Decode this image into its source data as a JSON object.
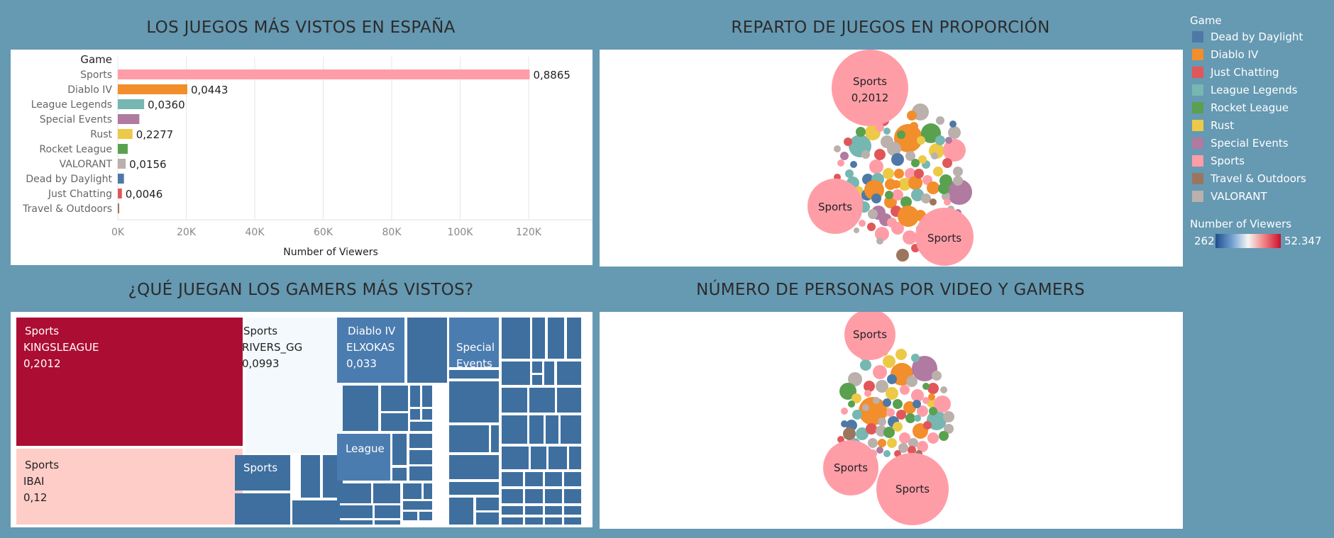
{
  "titles": {
    "top_left": "LOS JUEGOS MÁS VISTOS EN ESPAÑA",
    "top_right": "REPARTO DE JUEGOS EN PROPORCIÓN",
    "bottom_left": "¿QUÉ JUEGAN LOS GAMERS MÁS VISTOS?",
    "bottom_right": "NÚMERO DE PERSONAS POR VIDEO Y GAMERS"
  },
  "colors": {
    "Dead by Daylight": "#4e79a7",
    "Diablo IV": "#f28e2b",
    "Just Chatting": "#e15759",
    "League  Legends": "#76b7b2",
    "Rocket League": "#59a14f",
    "Rust": "#edc948",
    "Special Events": "#b07aa1",
    "Sports": "#ff9da7",
    "Travel & Outdoors": "#9c755f",
    "VALORANT": "#bab0ac"
  },
  "legend": {
    "title": "Game",
    "items": [
      "Dead by Daylight",
      "Diablo IV",
      "Just Chatting",
      "League  Legends",
      "Rocket League",
      "Rust",
      "Special Events",
      "Sports",
      "Travel & Outdoors",
      "VALORANT"
    ],
    "gradient_title": "Number of Viewers",
    "gradient_min": "262",
    "gradient_max": "52.347"
  },
  "chart_data": [
    {
      "type": "bar",
      "title": "LOS JUEGOS MÁS VISTOS EN ESPAÑA",
      "ylabel": "Game",
      "xlabel": "Number of Viewers",
      "categories": [
        "Sports",
        "Diablo IV",
        "League  Legends",
        "Special Events",
        "Rust",
        "Rocket League",
        "VALORANT",
        "Dead by Daylight",
        "Just Chatting",
        "Travel & Outdoors"
      ],
      "values": [
        120300,
        20300,
        7700,
        6300,
        4300,
        2900,
        2300,
        1800,
        1200,
        300
      ],
      "data_labels": [
        "0,8865",
        "0,0443",
        "0,0360",
        "",
        "0,2277",
        "",
        "0,0156",
        "",
        "0,0046",
        ""
      ],
      "x_ticks": [
        "0K",
        "20K",
        "40K",
        "60K",
        "80K",
        "100K",
        "120K"
      ],
      "xlim": [
        0,
        140000
      ]
    },
    {
      "type": "scatter",
      "title": "REPARTO DE JUEGOS EN PROPORCIÓN",
      "labels": [
        {
          "game": "Sports",
          "text": "Sports"
        },
        {
          "game": "Sports",
          "text": "0,2012"
        },
        {
          "game": "Sports",
          "text": "Sports"
        },
        {
          "game": "Sports",
          "text": "Sports"
        }
      ]
    },
    {
      "type": "heatmap",
      "title": "¿QUÉ JUEGAN LOS GAMERS MÁS VISTOS?",
      "tiles": [
        {
          "game": "Sports",
          "gamer": "KINGSLEAGUE",
          "value": "0,2012"
        },
        {
          "game": "Sports",
          "gamer": "RIVERS_GG",
          "value": "0,0993"
        },
        {
          "game": "Diablo IV",
          "gamer": "ELXOKAS",
          "value": "0,033"
        },
        {
          "game": "Special Events",
          "gamer": "",
          "value": ""
        },
        {
          "game": "Sports",
          "gamer": "IBAI",
          "value": "0,12"
        },
        {
          "game": "Sports",
          "gamer": "",
          "value": ""
        },
        {
          "game": "League",
          "gamer": "",
          "value": ""
        }
      ]
    },
    {
      "type": "scatter",
      "title": "NÚMERO DE PERSONAS POR VIDEO Y GAMERS",
      "labels": [
        {
          "game": "Sports",
          "text": "Sports"
        },
        {
          "game": "Sports",
          "text": "Sports"
        },
        {
          "game": "Sports",
          "text": "Sports"
        }
      ]
    }
  ],
  "treemap_text": {
    "t1_game": "Sports",
    "t1_gamer": "KINGSLEAGUE",
    "t1_value": "0,2012",
    "t2_game": "Sports",
    "t2_gamer": "RIVERS_GG",
    "t2_value": "0,0993",
    "t3_game": "Diablo IV",
    "t3_gamer": "ELXOKAS",
    "t3_value": "0,033",
    "t4_line1": "Special",
    "t4_line2": "Events",
    "t5_game": "Sports",
    "t5_gamer": "IBAI",
    "t5_value": "0,12",
    "t6_game": "Sports",
    "t7_game": "League"
  }
}
